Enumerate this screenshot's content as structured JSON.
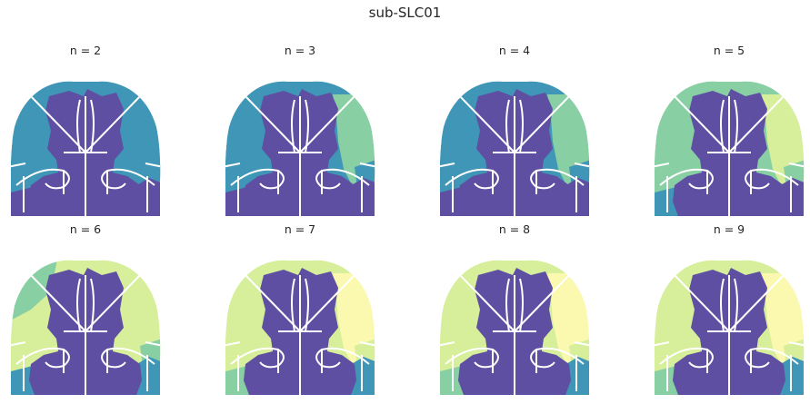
{
  "figure": {
    "title": "sub-SLC01"
  },
  "colors": {
    "purple": "#5e4fa2",
    "blue": "#3f96b7",
    "teal": "#88cfa4",
    "lime": "#d7ef9b",
    "cream": "#fbf8b0",
    "light_orange": "#fdd280",
    "orange": "#f88d52",
    "red": "#db4a47",
    "crimson": "#9e0142",
    "boundary": "#ffffff"
  },
  "panels": [
    {
      "title": "n = 2",
      "colors": {
        "olf": "blue",
        "lat": "blue",
        "latUp": "blue",
        "right": "blue",
        "rightLow": "blue",
        "botL": "purple",
        "botR": "purple"
      }
    },
    {
      "title": "n = 3",
      "colors": {
        "olf": "teal",
        "lat": "blue",
        "latUp": "blue",
        "right": "teal",
        "rightLow": "blue",
        "botL": "purple",
        "botR": "purple"
      }
    },
    {
      "title": "n = 4",
      "colors": {
        "olf": "lime",
        "lat": "blue",
        "latUp": "blue",
        "right": "teal",
        "rightLow": "blue",
        "botL": "purple",
        "botR": "purple"
      }
    },
    {
      "title": "n = 5",
      "colors": {
        "olf": "cream",
        "lat": "teal",
        "latUp": "teal",
        "right": "lime",
        "rightLow": "teal",
        "botL": "blue",
        "botR": "purple"
      }
    },
    {
      "title": "n = 6",
      "colors": {
        "olf": "light_orange",
        "lat": "lime",
        "latUp": "teal",
        "right": "lime",
        "rightLow": "teal",
        "botL": "blue",
        "botR": "blue"
      }
    },
    {
      "title": "n = 7",
      "colors": {
        "olf": "orange",
        "lat": "lime",
        "latUp": "lime",
        "right": "cream",
        "rightLow": "lime",
        "botL": "teal",
        "botR": "blue"
      }
    },
    {
      "title": "n = 8",
      "colors": {
        "olf": "red",
        "lat": "lime",
        "latUp": "lime",
        "right": "cream",
        "rightLow": "lime",
        "botL": "teal",
        "botR": "blue"
      }
    },
    {
      "title": "n = 9",
      "colors": {
        "olf": "crimson",
        "lat": "lime",
        "latUp": "lime",
        "right": "cream",
        "rightLow": "lime",
        "botL": "teal",
        "botR": "blue"
      }
    }
  ]
}
